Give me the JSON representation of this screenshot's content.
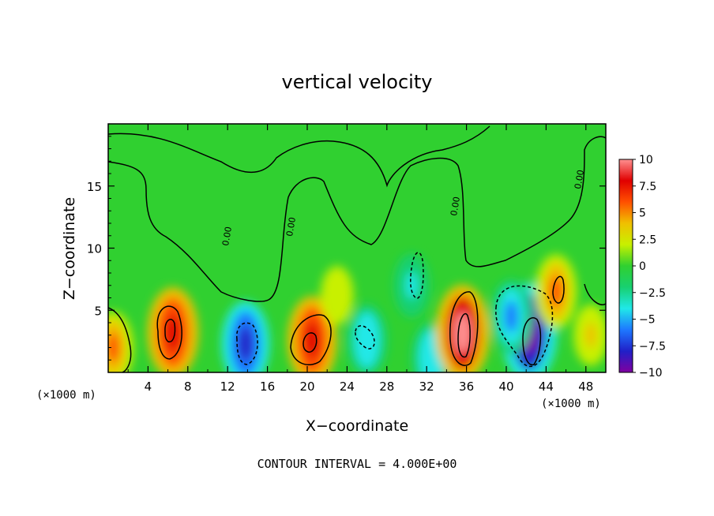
{
  "chart_data": {
    "type": "heatmap",
    "title": "vertical velocity",
    "xlabel": "X−coordinate",
    "ylabel": "Z−coordinate",
    "x_unit_label": "(×1000 m)",
    "contour_note": "CONTOUR INTERVAL = 4.000E+00",
    "xlim": [
      0,
      50
    ],
    "ylim": [
      0,
      20
    ],
    "x_ticks": [
      "4",
      "8",
      "12",
      "16",
      "20",
      "24",
      "28",
      "32",
      "36",
      "40",
      "44",
      "48"
    ],
    "y_ticks": [
      "5",
      "10",
      "15"
    ],
    "colorbar": {
      "min": -10,
      "max": 10,
      "tick_labels": [
        "10",
        "7.5",
        "5",
        "2.5",
        "0",
        "−2.5",
        "−5",
        "−7.5",
        "−10"
      ]
    },
    "contour_labels": [
      "0.00",
      "0.00",
      "0.00",
      "0.00"
    ],
    "features": [
      {
        "x": 6.5,
        "z": 3.2,
        "value": 8.5
      },
      {
        "x": 0.5,
        "z": 2.0,
        "value": 5.0
      },
      {
        "x": 13.8,
        "z": 2.3,
        "value": -7.5
      },
      {
        "x": 20.5,
        "z": 2.6,
        "value": 8.0
      },
      {
        "x": 26.0,
        "z": 2.6,
        "value": -5.0
      },
      {
        "x": 30.5,
        "z": 7.0,
        "value": -3.5
      },
      {
        "x": 32.5,
        "z": 1.2,
        "value": -5.0
      },
      {
        "x": 35.6,
        "z": 3.2,
        "value": 9.5
      },
      {
        "x": 42.3,
        "z": 3.2,
        "value": -10.0
      },
      {
        "x": 40.5,
        "z": 4.5,
        "value": -5.5
      },
      {
        "x": 45.0,
        "z": 6.5,
        "value": 5.5
      },
      {
        "x": 48.5,
        "z": 3.0,
        "value": 3.0
      },
      {
        "x": 23.0,
        "z": 6.2,
        "value": 2.5
      }
    ]
  },
  "colors": {
    "stops": [
      "#8000a0",
      "#2020c8",
      "#1e78ff",
      "#20e8e8",
      "#18d070",
      "#30d030",
      "#c8f000",
      "#f0c000",
      "#ff5000",
      "#e00000",
      "#ff9090"
    ],
    "background_field": "#30d030"
  }
}
